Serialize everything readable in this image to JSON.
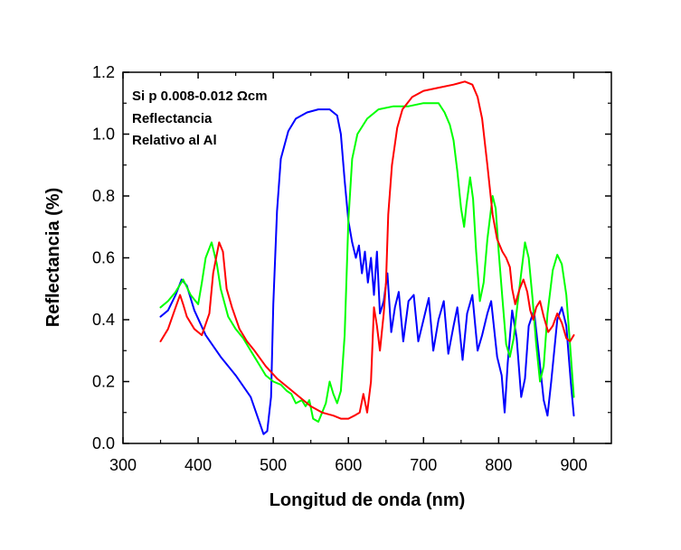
{
  "chart_data": {
    "type": "line",
    "xlabel": "Longitud de onda (nm)",
    "ylabel": "Reflectancia (%)",
    "xlim": [
      300,
      950
    ],
    "ylim": [
      0,
      1.2
    ],
    "xticks": [
      300,
      400,
      500,
      600,
      700,
      800,
      900
    ],
    "yticks": [
      0.0,
      0.2,
      0.4,
      0.6,
      0.8,
      1.0,
      1.2
    ],
    "xtick_labels": [
      "300",
      "400",
      "500",
      "600",
      "700",
      "800",
      "900"
    ],
    "ytick_labels": [
      "0.0",
      "0.2",
      "0.4",
      "0.6",
      "0.8",
      "1.0",
      "1.2"
    ],
    "annotations": [
      "Si p 0.008-0.012 Ωcm",
      "Reflectancia",
      "Relativo al Al"
    ],
    "grid": false,
    "series": [
      {
        "color": "#0000ff",
        "points": [
          [
            350,
            0.41
          ],
          [
            360,
            0.43
          ],
          [
            370,
            0.48
          ],
          [
            378,
            0.53
          ],
          [
            385,
            0.51
          ],
          [
            395,
            0.43
          ],
          [
            410,
            0.35
          ],
          [
            430,
            0.28
          ],
          [
            450,
            0.22
          ],
          [
            470,
            0.15
          ],
          [
            480,
            0.08
          ],
          [
            487,
            0.03
          ],
          [
            492,
            0.04
          ],
          [
            497,
            0.15
          ],
          [
            500,
            0.45
          ],
          [
            505,
            0.75
          ],
          [
            510,
            0.92
          ],
          [
            520,
            1.01
          ],
          [
            530,
            1.05
          ],
          [
            545,
            1.07
          ],
          [
            560,
            1.08
          ],
          [
            575,
            1.08
          ],
          [
            585,
            1.06
          ],
          [
            590,
            1.0
          ],
          [
            595,
            0.85
          ],
          [
            600,
            0.72
          ],
          [
            605,
            0.65
          ],
          [
            610,
            0.6
          ],
          [
            614,
            0.64
          ],
          [
            618,
            0.55
          ],
          [
            622,
            0.62
          ],
          [
            626,
            0.52
          ],
          [
            630,
            0.6
          ],
          [
            634,
            0.48
          ],
          [
            638,
            0.62
          ],
          [
            642,
            0.42
          ],
          [
            647,
            0.46
          ],
          [
            652,
            0.55
          ],
          [
            657,
            0.36
          ],
          [
            662,
            0.44
          ],
          [
            667,
            0.49
          ],
          [
            673,
            0.33
          ],
          [
            680,
            0.46
          ],
          [
            687,
            0.48
          ],
          [
            693,
            0.33
          ],
          [
            700,
            0.4
          ],
          [
            707,
            0.47
          ],
          [
            713,
            0.3
          ],
          [
            720,
            0.4
          ],
          [
            727,
            0.46
          ],
          [
            733,
            0.29
          ],
          [
            740,
            0.38
          ],
          [
            745,
            0.44
          ],
          [
            752,
            0.27
          ],
          [
            758,
            0.42
          ],
          [
            765,
            0.48
          ],
          [
            772,
            0.3
          ],
          [
            778,
            0.35
          ],
          [
            785,
            0.42
          ],
          [
            790,
            0.46
          ],
          [
            798,
            0.28
          ],
          [
            804,
            0.22
          ],
          [
            808,
            0.1
          ],
          [
            812,
            0.26
          ],
          [
            818,
            0.43
          ],
          [
            824,
            0.34
          ],
          [
            830,
            0.15
          ],
          [
            835,
            0.21
          ],
          [
            840,
            0.38
          ],
          [
            847,
            0.43
          ],
          [
            853,
            0.3
          ],
          [
            860,
            0.14
          ],
          [
            865,
            0.09
          ],
          [
            870,
            0.2
          ],
          [
            878,
            0.4
          ],
          [
            884,
            0.44
          ],
          [
            890,
            0.38
          ],
          [
            896,
            0.2
          ],
          [
            900,
            0.09
          ]
        ]
      },
      {
        "color": "#00ff00",
        "points": [
          [
            350,
            0.44
          ],
          [
            360,
            0.46
          ],
          [
            370,
            0.49
          ],
          [
            380,
            0.53
          ],
          [
            390,
            0.48
          ],
          [
            400,
            0.45
          ],
          [
            405,
            0.52
          ],
          [
            410,
            0.6
          ],
          [
            418,
            0.65
          ],
          [
            425,
            0.58
          ],
          [
            430,
            0.5
          ],
          [
            440,
            0.41
          ],
          [
            450,
            0.37
          ],
          [
            460,
            0.34
          ],
          [
            470,
            0.3
          ],
          [
            480,
            0.26
          ],
          [
            490,
            0.22
          ],
          [
            500,
            0.2
          ],
          [
            510,
            0.19
          ],
          [
            518,
            0.17
          ],
          [
            524,
            0.16
          ],
          [
            530,
            0.13
          ],
          [
            538,
            0.14
          ],
          [
            543,
            0.12
          ],
          [
            548,
            0.14
          ],
          [
            553,
            0.08
          ],
          [
            560,
            0.07
          ],
          [
            565,
            0.1
          ],
          [
            570,
            0.13
          ],
          [
            575,
            0.2
          ],
          [
            580,
            0.16
          ],
          [
            585,
            0.13
          ],
          [
            590,
            0.17
          ],
          [
            595,
            0.35
          ],
          [
            600,
            0.72
          ],
          [
            605,
            0.92
          ],
          [
            612,
            1.0
          ],
          [
            625,
            1.05
          ],
          [
            640,
            1.08
          ],
          [
            660,
            1.09
          ],
          [
            680,
            1.09
          ],
          [
            700,
            1.1
          ],
          [
            720,
            1.1
          ],
          [
            728,
            1.07
          ],
          [
            735,
            1.03
          ],
          [
            740,
            0.98
          ],
          [
            745,
            0.88
          ],
          [
            750,
            0.76
          ],
          [
            754,
            0.7
          ],
          [
            757,
            0.77
          ],
          [
            762,
            0.86
          ],
          [
            766,
            0.79
          ],
          [
            770,
            0.62
          ],
          [
            775,
            0.46
          ],
          [
            780,
            0.52
          ],
          [
            785,
            0.66
          ],
          [
            792,
            0.8
          ],
          [
            796,
            0.76
          ],
          [
            800,
            0.62
          ],
          [
            805,
            0.47
          ],
          [
            810,
            0.32
          ],
          [
            815,
            0.28
          ],
          [
            820,
            0.34
          ],
          [
            825,
            0.45
          ],
          [
            830,
            0.55
          ],
          [
            835,
            0.65
          ],
          [
            840,
            0.6
          ],
          [
            845,
            0.47
          ],
          [
            850,
            0.32
          ],
          [
            855,
            0.2
          ],
          [
            860,
            0.25
          ],
          [
            865,
            0.42
          ],
          [
            872,
            0.56
          ],
          [
            878,
            0.61
          ],
          [
            884,
            0.58
          ],
          [
            890,
            0.48
          ],
          [
            895,
            0.32
          ],
          [
            900,
            0.15
          ]
        ]
      },
      {
        "color": "#ff0000",
        "points": [
          [
            350,
            0.33
          ],
          [
            360,
            0.37
          ],
          [
            370,
            0.44
          ],
          [
            376,
            0.48
          ],
          [
            380,
            0.45
          ],
          [
            385,
            0.41
          ],
          [
            395,
            0.37
          ],
          [
            405,
            0.35
          ],
          [
            415,
            0.42
          ],
          [
            420,
            0.55
          ],
          [
            428,
            0.65
          ],
          [
            433,
            0.62
          ],
          [
            438,
            0.5
          ],
          [
            445,
            0.44
          ],
          [
            455,
            0.37
          ],
          [
            465,
            0.33
          ],
          [
            475,
            0.3
          ],
          [
            490,
            0.25
          ],
          [
            505,
            0.21
          ],
          [
            520,
            0.18
          ],
          [
            535,
            0.15
          ],
          [
            550,
            0.12
          ],
          [
            565,
            0.1
          ],
          [
            580,
            0.09
          ],
          [
            590,
            0.08
          ],
          [
            600,
            0.08
          ],
          [
            608,
            0.09
          ],
          [
            615,
            0.1
          ],
          [
            620,
            0.16
          ],
          [
            625,
            0.1
          ],
          [
            630,
            0.2
          ],
          [
            634,
            0.44
          ],
          [
            638,
            0.38
          ],
          [
            642,
            0.3
          ],
          [
            647,
            0.42
          ],
          [
            650,
            0.52
          ],
          [
            653,
            0.74
          ],
          [
            658,
            0.9
          ],
          [
            665,
            1.02
          ],
          [
            672,
            1.08
          ],
          [
            685,
            1.12
          ],
          [
            700,
            1.14
          ],
          [
            720,
            1.15
          ],
          [
            740,
            1.16
          ],
          [
            755,
            1.17
          ],
          [
            765,
            1.16
          ],
          [
            772,
            1.12
          ],
          [
            778,
            1.05
          ],
          [
            785,
            0.9
          ],
          [
            792,
            0.74
          ],
          [
            798,
            0.66
          ],
          [
            805,
            0.62
          ],
          [
            810,
            0.6
          ],
          [
            815,
            0.57
          ],
          [
            818,
            0.5
          ],
          [
            822,
            0.45
          ],
          [
            828,
            0.5
          ],
          [
            833,
            0.53
          ],
          [
            838,
            0.49
          ],
          [
            842,
            0.43
          ],
          [
            846,
            0.4
          ],
          [
            850,
            0.44
          ],
          [
            855,
            0.46
          ],
          [
            860,
            0.41
          ],
          [
            866,
            0.36
          ],
          [
            872,
            0.38
          ],
          [
            878,
            0.42
          ],
          [
            884,
            0.39
          ],
          [
            890,
            0.34
          ],
          [
            895,
            0.33
          ],
          [
            900,
            0.35
          ]
        ]
      }
    ]
  }
}
